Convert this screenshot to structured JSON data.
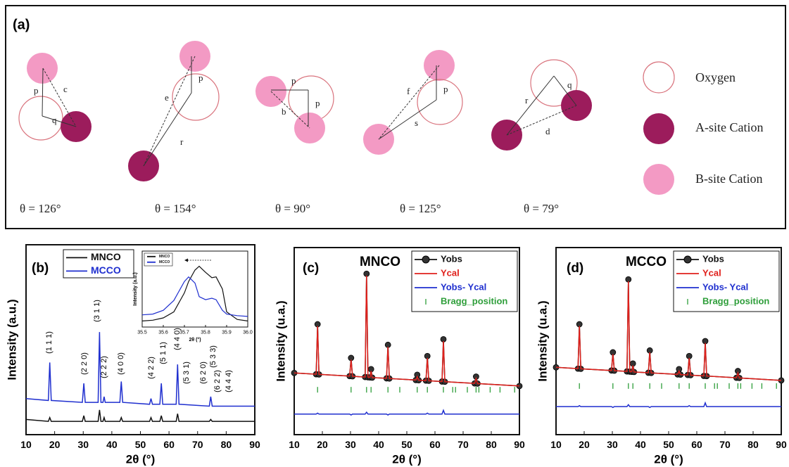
{
  "panel_a": {
    "label": "(a)",
    "sketches": [
      {
        "labels": [
          "p",
          "c",
          "q"
        ],
        "angle": "θ = 126°"
      },
      {
        "labels": [
          "p",
          "e",
          "r"
        ],
        "angle": "θ = 154°"
      },
      {
        "labels": [
          "p",
          "p",
          "b"
        ],
        "angle": "θ = 90°"
      },
      {
        "labels": [
          "p",
          "f",
          "s"
        ],
        "angle": "θ = 125°"
      },
      {
        "labels": [
          "r",
          "q",
          "d"
        ],
        "angle": "θ = 79°"
      }
    ],
    "legend": [
      "Oxygen",
      "A-site Cation",
      "B-site Cation"
    ]
  },
  "chart_data": [
    {
      "type": "line",
      "panel_label": "(b)",
      "x_label": "2θ (°)",
      "y_label": "Intensity (a.u.)",
      "x": [
        10,
        17.8,
        18.3,
        18.8,
        29.7,
        30.2,
        30.7,
        35.2,
        35.7,
        36.2,
        36.9,
        37.3,
        37.7,
        42.8,
        43.3,
        43.8,
        53.2,
        53.7,
        54.2,
        56.8,
        57.3,
        57.8,
        62.5,
        63,
        63.5,
        74.1,
        74.6,
        75.1,
        90
      ],
      "series": [
        {
          "name": "MNCO",
          "color": "#111111",
          "mark": "line",
          "values": [
            8,
            7,
            9,
            7,
            7,
            10,
            7,
            7,
            13,
            7,
            7,
            9,
            7,
            7,
            9,
            7,
            7,
            9,
            7,
            7,
            10,
            7,
            7,
            11,
            7,
            7,
            8,
            7,
            7
          ]
        },
        {
          "name": "MCCO",
          "color": "#1f2fcf",
          "mark": "line",
          "values": [
            19,
            18,
            38,
            18,
            17,
            27,
            17,
            17,
            54,
            17,
            17,
            20,
            17,
            17,
            28,
            17,
            16,
            19,
            16,
            16,
            27,
            16,
            16,
            37,
            16,
            15,
            20,
            15,
            15
          ]
        }
      ],
      "annotations": [
        "(1 1 1)",
        "(2 2 0)",
        "(3 1 1)",
        "(2 2 2)",
        "(4 0 0)",
        "(4 2 2)",
        "(5 1 1)",
        "(4 4 0)",
        "(5 3 1)",
        "(6 2 0)",
        "(5 3 3)",
        "(6 2 2)",
        "(4 4 4)"
      ],
      "xlim": [
        10,
        90
      ],
      "xticks": [
        10,
        20,
        30,
        40,
        50,
        60,
        70,
        80,
        90
      ],
      "ylim": [
        0,
        100
      ]
    },
    {
      "type": "line",
      "x_label": "2θ (°)",
      "y_label": "Intensity (a.u.)",
      "x": [
        35.5,
        35.55,
        35.6,
        35.65,
        35.7,
        35.72,
        35.75,
        35.77,
        35.8,
        35.83,
        35.85,
        35.88,
        35.9,
        35.95,
        36
      ],
      "series": [
        {
          "name": "MNCO",
          "color": "#111111",
          "mark": "line",
          "values": [
            8,
            9,
            12,
            20,
            45,
            60,
            75,
            80,
            72,
            65,
            66,
            50,
            20,
            10,
            8
          ]
        },
        {
          "name": "MCCO",
          "color": "#1f2fcf",
          "mark": "line",
          "values": [
            16,
            17,
            22,
            35,
            60,
            66,
            58,
            40,
            36,
            38,
            36,
            22,
            17,
            15,
            14
          ]
        }
      ],
      "xlim": [
        35.5,
        36
      ],
      "xticks": [
        35.5,
        35.6,
        35.7,
        35.8,
        35.9,
        {
          "value": 36,
          "label": "36.0"
        }
      ],
      "ylim": [
        0,
        100
      ]
    },
    {
      "type": "line",
      "panel_label": "(c)",
      "title": "MNCO",
      "x_label": "2θ (°)",
      "y_label": "Intensity (u.a.)",
      "x": [
        10,
        17.8,
        18.3,
        18.8,
        29.7,
        30.2,
        30.7,
        35.2,
        35.7,
        36.2,
        36.9,
        37.3,
        37.7,
        42.8,
        43.3,
        43.8,
        53.2,
        53.7,
        54.2,
        56.8,
        57.3,
        57.8,
        62.5,
        63,
        63.5,
        74.1,
        74.6,
        75.1,
        90
      ],
      "series": [
        {
          "name": "Yobs",
          "color": "#111111",
          "mark": "circle-line",
          "values": [
            33,
            32.3,
            59,
            32.2,
            31.3,
            41,
            31.2,
            30.8,
            86,
            30.7,
            30.6,
            35,
            30.5,
            30.1,
            48,
            30,
            29.2,
            32,
            29.1,
            28.9,
            42,
            28.8,
            28.4,
            51,
            28.3,
            27.4,
            31,
            27.3,
            26
          ]
        },
        {
          "name": "Ycal",
          "color": "#e0201b",
          "mark": "line",
          "values": [
            33,
            32.3,
            58,
            32.2,
            31.3,
            40,
            31.2,
            30.8,
            85,
            30.7,
            30.6,
            34,
            30.5,
            30.1,
            47,
            30,
            29.2,
            31,
            29.1,
            28.9,
            41,
            28.8,
            28.4,
            50,
            28.3,
            27.4,
            30,
            27.3,
            26
          ]
        },
        {
          "name": "Yobs- Ycal",
          "color": "#1f2fcf",
          "mark": "line",
          "values": [
            11,
            11,
            11.5,
            11,
            11,
            10.5,
            11,
            11,
            12,
            11,
            11,
            11,
            11,
            11,
            10.5,
            11,
            11,
            11,
            11,
            11,
            11.5,
            11,
            11,
            13,
            11,
            11,
            11,
            11,
            11
          ]
        },
        {
          "name": "Bragg_position",
          "color": "#2e9e3a",
          "mark": "tick",
          "x": [
            18.3,
            30.2,
            35.7,
            37.3,
            43.3,
            47.5,
            53.7,
            57.3,
            63,
            66.3,
            67.3,
            71.5,
            74.6,
            75.6,
            79.6,
            83.1,
            88.3
          ],
          "values": [
            24,
            24,
            24,
            24,
            24,
            24,
            24,
            24,
            24,
            24,
            24,
            24,
            24,
            24,
            24,
            24,
            24
          ]
        }
      ],
      "xlim": [
        10,
        90
      ],
      "xticks": [
        10,
        20,
        30,
        40,
        50,
        60,
        70,
        80,
        90
      ],
      "ylim": [
        0,
        100
      ]
    },
    {
      "type": "line",
      "panel_label": "(d)",
      "title": "MCCO",
      "x_label": "2θ (°)",
      "y_label": "Intensity (u.a.)",
      "x": [
        10,
        17.8,
        18.3,
        18.8,
        29.7,
        30.2,
        30.7,
        35.2,
        35.7,
        36.2,
        36.9,
        37.3,
        37.7,
        42.8,
        43.3,
        43.8,
        53.2,
        53.7,
        54.2,
        56.8,
        57.3,
        57.8,
        62.5,
        63,
        63.5,
        74.1,
        74.6,
        75.1,
        90
      ],
      "series": [
        {
          "name": "Yobs",
          "color": "#111111",
          "mark": "circle-line",
          "values": [
            36,
            35.3,
            59,
            35.2,
            34.3,
            44,
            34.2,
            33.8,
            83,
            33.7,
            33.6,
            38,
            33.5,
            33.1,
            45,
            33,
            32.2,
            35,
            32.1,
            31.9,
            42,
            31.8,
            31.4,
            50,
            31.3,
            30.4,
            34,
            30.3,
            29
          ]
        },
        {
          "name": "Ycal",
          "color": "#e0201b",
          "mark": "line",
          "values": [
            36,
            35.3,
            58,
            35.2,
            34.3,
            43,
            34.2,
            33.8,
            82,
            33.7,
            33.6,
            37,
            33.5,
            33.1,
            44,
            33,
            32.2,
            34,
            32.1,
            31.9,
            41,
            31.8,
            31.4,
            49,
            31.3,
            30.4,
            33,
            30.3,
            29
          ]
        },
        {
          "name": "Yobs- Ycal",
          "color": "#1f2fcf",
          "mark": "line",
          "values": [
            15,
            15,
            15.5,
            15,
            15,
            14.5,
            15,
            15,
            16,
            15,
            15,
            15,
            15,
            15,
            14.5,
            15,
            15,
            15,
            15,
            15,
            15.5,
            15,
            15,
            17,
            15,
            15,
            15,
            15,
            15
          ]
        },
        {
          "name": "Bragg_position",
          "color": "#2e9e3a",
          "mark": "tick",
          "x": [
            18.3,
            30.2,
            35.7,
            37.3,
            43.3,
            47.5,
            53.7,
            57.3,
            63,
            66.3,
            67.3,
            71.5,
            74.6,
            75.6,
            79.6,
            83.1,
            88.3
          ],
          "values": [
            26,
            26,
            26,
            26,
            26,
            26,
            26,
            26,
            26,
            26,
            26,
            26,
            26,
            26,
            26,
            26,
            26
          ]
        }
      ],
      "xlim": [
        10,
        90
      ],
      "xticks": [
        10,
        20,
        30,
        40,
        50,
        60,
        70,
        80,
        90
      ],
      "ylim": [
        0,
        100
      ]
    }
  ]
}
